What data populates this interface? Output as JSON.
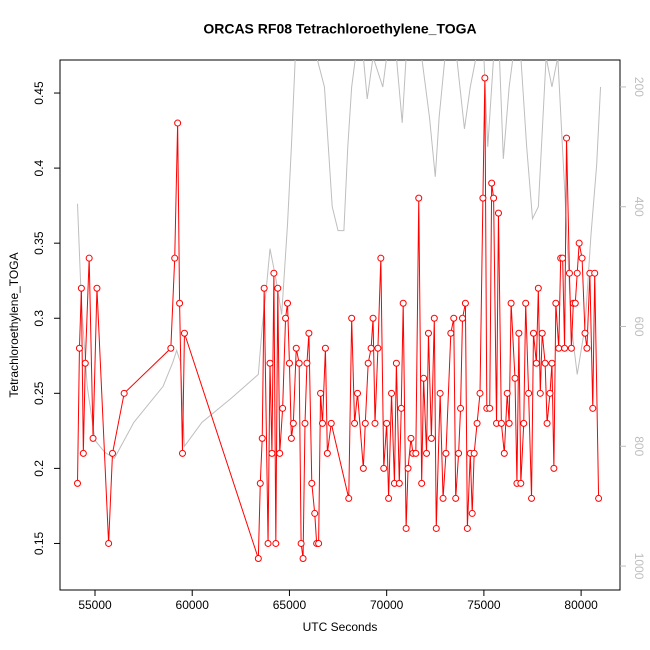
{
  "chart_data": {
    "type": "line",
    "title": "ORCAS RF08 Tetrachloroethylene_TOGA",
    "x_label": "UTC Seconds",
    "y_label": "Tetrachloroethylene_TOGA",
    "xlim": [
      53200,
      82000
    ],
    "xticks": [
      55000,
      60000,
      65000,
      70000,
      75000,
      80000
    ],
    "ylim": [
      0.119,
      0.472
    ],
    "yticks": [
      0.15,
      0.2,
      0.25,
      0.3,
      0.35,
      0.4,
      0.45
    ],
    "y2lim": [
      1040,
      155
    ],
    "y2ticks": [
      200,
      400,
      600,
      800,
      1000
    ],
    "series": [
      {
        "color": "#ff0000",
        "markers": true,
        "x": [
          54100,
          54200,
          54300,
          54400,
          54500,
          54700,
          54900,
          55100,
          55700,
          55900,
          56500,
          58900,
          59100,
          59250,
          59350,
          59500,
          59600,
          63400,
          63500,
          63600,
          63700,
          63900,
          64000,
          64100,
          64200,
          64300,
          64400,
          64500,
          64650,
          64800,
          64900,
          65000,
          65100,
          65200,
          65350,
          65500,
          65600,
          65700,
          65800,
          65900,
          66000,
          66150,
          66300,
          66400,
          66500,
          66600,
          66700,
          66850,
          66950,
          67150,
          68050,
          68200,
          68350,
          68500,
          68800,
          68900,
          69050,
          69200,
          69300,
          69400,
          69550,
          69700,
          69850,
          70000,
          70100,
          70250,
          70400,
          70500,
          70650,
          70750,
          70850,
          71000,
          71100,
          71250,
          71350,
          71500,
          71650,
          71800,
          71900,
          72050,
          72150,
          72300,
          72450,
          72550,
          72750,
          72900,
          73050,
          73300,
          73450,
          73550,
          73700,
          73800,
          73900,
          74050,
          74150,
          74300,
          74400,
          74500,
          74650,
          74800,
          74950,
          75050,
          75150,
          75300,
          75400,
          75500,
          75650,
          75750,
          75900,
          76050,
          76200,
          76300,
          76400,
          76600,
          76700,
          76800,
          76900,
          77050,
          77150,
          77300,
          77450,
          77550,
          77700,
          77800,
          77900,
          78000,
          78150,
          78250,
          78400,
          78500,
          78600,
          78700,
          78850,
          78950,
          79050,
          79150,
          79250,
          79400,
          79500,
          79600,
          79700,
          79800,
          79900,
          80050,
          80200,
          80300,
          80450,
          80600,
          80700,
          80900
        ],
        "values": [
          0.19,
          0.28,
          0.32,
          0.21,
          0.27,
          0.34,
          0.22,
          0.32,
          0.15,
          0.21,
          0.25,
          0.28,
          0.34,
          0.43,
          0.31,
          0.21,
          0.29,
          0.14,
          0.19,
          0.22,
          0.32,
          0.15,
          0.27,
          0.21,
          0.33,
          0.15,
          0.32,
          0.21,
          0.24,
          0.3,
          0.31,
          0.27,
          0.22,
          0.23,
          0.28,
          0.27,
          0.15,
          0.14,
          0.23,
          0.27,
          0.29,
          0.19,
          0.17,
          0.15,
          0.15,
          0.25,
          0.23,
          0.28,
          0.21,
          0.23,
          0.18,
          0.3,
          0.23,
          0.25,
          0.2,
          0.23,
          0.27,
          0.28,
          0.3,
          0.23,
          0.28,
          0.34,
          0.2,
          0.23,
          0.18,
          0.25,
          0.19,
          0.27,
          0.19,
          0.24,
          0.31,
          0.16,
          0.2,
          0.22,
          0.21,
          0.21,
          0.38,
          0.19,
          0.26,
          0.21,
          0.29,
          0.22,
          0.3,
          0.16,
          0.25,
          0.18,
          0.21,
          0.29,
          0.3,
          0.18,
          0.21,
          0.24,
          0.3,
          0.31,
          0.16,
          0.21,
          0.17,
          0.21,
          0.23,
          0.25,
          0.38,
          0.46,
          0.24,
          0.24,
          0.39,
          0.38,
          0.23,
          0.37,
          0.23,
          0.21,
          0.25,
          0.23,
          0.31,
          0.26,
          0.19,
          0.29,
          0.19,
          0.23,
          0.31,
          0.25,
          0.18,
          0.29,
          0.27,
          0.32,
          0.25,
          0.29,
          0.27,
          0.23,
          0.25,
          0.27,
          0.2,
          0.31,
          0.28,
          0.34,
          0.34,
          0.28,
          0.42,
          0.33,
          0.28,
          0.31,
          0.31,
          0.33,
          0.35,
          0.34,
          0.29,
          0.28,
          0.33,
          0.24,
          0.33,
          0.18
        ]
      },
      {
        "color": "#bebebe",
        "axis": "y2",
        "markers": false,
        "x": [
          54100,
          54300,
          54600,
          55000,
          55500,
          56000,
          57000,
          58500,
          59000,
          59200,
          59400,
          59600,
          60500,
          62000,
          63400,
          63600,
          63800,
          64000,
          64300,
          64600,
          64900,
          65100,
          65300,
          66000,
          66400,
          66800,
          67200,
          67500,
          67800,
          68000,
          68200,
          68400,
          68800,
          69000,
          69300,
          69800,
          70000,
          70500,
          70800,
          71000,
          71800,
          72200,
          72500,
          72700,
          73000,
          73600,
          74000,
          74300,
          74600,
          75000,
          75200,
          75500,
          75800,
          76000,
          76300,
          76500,
          76900,
          77200,
          77500,
          77800,
          78200,
          78500,
          78800,
          79200,
          79500,
          79800,
          80200,
          80500,
          80800,
          81000
        ],
        "values": [
          395,
          560,
          700,
          790,
          810,
          820,
          760,
          700,
          660,
          640,
          660,
          800,
          760,
          720,
          680,
          600,
          540,
          470,
          520,
          580,
          430,
          300,
          150,
          150,
          150,
          200,
          400,
          440,
          440,
          300,
          200,
          150,
          150,
          220,
          150,
          200,
          150,
          150,
          260,
          150,
          150,
          250,
          350,
          250,
          150,
          150,
          270,
          200,
          150,
          150,
          300,
          150,
          150,
          320,
          200,
          150,
          150,
          300,
          420,
          400,
          150,
          200,
          150,
          400,
          600,
          680,
          600,
          450,
          330,
          200
        ]
      }
    ]
  }
}
